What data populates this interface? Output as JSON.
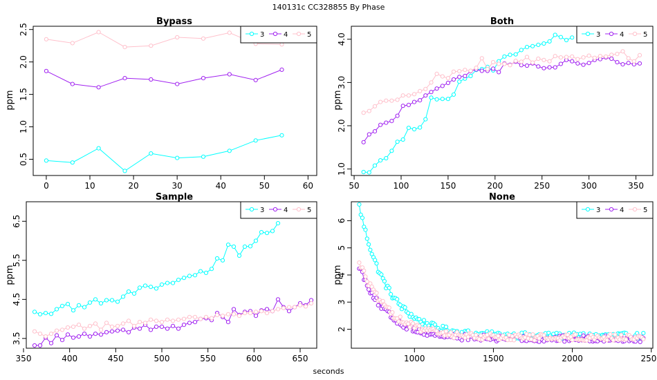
{
  "figure": {
    "top_title": "140131c    CC328855   By Phase",
    "xlabel": "seconds"
  },
  "chart_data": [
    {
      "type": "line",
      "title": "Bypass",
      "ylabel": "ppm",
      "xlim": [
        -3,
        62
      ],
      "ylim": [
        0.25,
        2.55
      ],
      "xticks": [
        0,
        10,
        20,
        30,
        40,
        50,
        60
      ],
      "yticks": [
        0.5,
        1.0,
        1.5,
        2.0,
        2.5
      ],
      "ytick_labels": [
        "0.5",
        "1.0",
        "1.5",
        "2.0",
        "2.5"
      ],
      "legend": "top-right",
      "series": [
        {
          "name": "3",
          "color": "#00FFFF",
          "x": [
            0,
            6,
            12,
            18,
            24,
            30,
            36,
            42,
            48,
            54
          ],
          "y": [
            0.48,
            0.45,
            0.67,
            0.32,
            0.59,
            0.52,
            0.54,
            0.63,
            0.79,
            0.87
          ]
        },
        {
          "name": "4",
          "color": "#A020F0",
          "x": [
            0,
            6,
            12,
            18,
            24,
            30,
            36,
            42,
            48,
            54
          ],
          "y": [
            1.86,
            1.66,
            1.61,
            1.75,
            1.73,
            1.66,
            1.75,
            1.81,
            1.72,
            1.88
          ]
        },
        {
          "name": "5",
          "color": "#FFC0CB",
          "x": [
            0,
            6,
            12,
            18,
            24,
            30,
            36,
            42,
            48,
            54
          ],
          "y": [
            2.35,
            2.29,
            2.46,
            2.23,
            2.25,
            2.38,
            2.36,
            2.45,
            2.28,
            2.27
          ]
        }
      ]
    },
    {
      "type": "line",
      "title": "Both",
      "ylabel": "ppm",
      "xlim": [
        47,
        368
      ],
      "ylim": [
        0.85,
        4.3
      ],
      "xticks": [
        50,
        100,
        150,
        200,
        250,
        300,
        350
      ],
      "yticks": [
        1.0,
        2.0,
        3.0,
        4.0
      ],
      "ytick_labels": [
        "1.0",
        "2.0",
        "3.0",
        "4.0"
      ],
      "legend": "top-right",
      "series": [
        {
          "name": "3",
          "color": "#00FFFF",
          "x": [
            60,
            66,
            72,
            78,
            84,
            90,
            96,
            102,
            108,
            114,
            120,
            126,
            132,
            138,
            144,
            150,
            156,
            162,
            168,
            174,
            180,
            186,
            192,
            198,
            204,
            210,
            216,
            222,
            228,
            234,
            240,
            246,
            252,
            258,
            264,
            270,
            276,
            282
          ],
          "y": [
            0.93,
            0.92,
            1.08,
            1.2,
            1.25,
            1.42,
            1.63,
            1.68,
            1.95,
            1.92,
            1.96,
            2.15,
            2.65,
            2.61,
            2.62,
            2.62,
            2.72,
            3.02,
            3.09,
            3.15,
            3.29,
            3.31,
            3.36,
            3.28,
            3.49,
            3.6,
            3.64,
            3.65,
            3.75,
            3.82,
            3.84,
            3.87,
            3.9,
            3.95,
            4.1,
            4.05,
            3.98,
            4.04
          ]
        },
        {
          "name": "4",
          "color": "#A020F0",
          "x": [
            60,
            66,
            72,
            78,
            84,
            90,
            96,
            102,
            108,
            114,
            120,
            126,
            132,
            138,
            144,
            150,
            156,
            162,
            168,
            174,
            180,
            186,
            192,
            198,
            204,
            210,
            216,
            222,
            228,
            234,
            240,
            246,
            252,
            258,
            264,
            270,
            276,
            282,
            288,
            294,
            300,
            306,
            312,
            318,
            324,
            330,
            336,
            342,
            348,
            354
          ],
          "y": [
            1.62,
            1.8,
            1.87,
            2.02,
            2.07,
            2.11,
            2.23,
            2.46,
            2.48,
            2.55,
            2.59,
            2.7,
            2.78,
            2.86,
            2.92,
            2.99,
            3.07,
            3.13,
            3.15,
            3.26,
            3.3,
            3.27,
            3.27,
            3.32,
            3.24,
            3.44,
            3.41,
            3.48,
            3.4,
            3.39,
            3.44,
            3.37,
            3.33,
            3.35,
            3.35,
            3.43,
            3.52,
            3.49,
            3.44,
            3.41,
            3.45,
            3.52,
            3.54,
            3.58,
            3.55,
            3.47,
            3.42,
            3.45,
            3.42,
            3.44
          ]
        },
        {
          "name": "5",
          "color": "#FFC0CB",
          "x": [
            60,
            66,
            72,
            78,
            84,
            90,
            96,
            102,
            108,
            114,
            120,
            126,
            132,
            138,
            144,
            150,
            156,
            162,
            168,
            174,
            180,
            186,
            192,
            198,
            204,
            210,
            216,
            222,
            228,
            234,
            240,
            246,
            252,
            258,
            264,
            270,
            276,
            282,
            288,
            294,
            300,
            306,
            312,
            318,
            324,
            330,
            336,
            342,
            348,
            354
          ],
          "y": [
            2.3,
            2.34,
            2.45,
            2.55,
            2.58,
            2.58,
            2.6,
            2.7,
            2.7,
            2.73,
            2.8,
            2.85,
            3.0,
            3.2,
            3.14,
            3.1,
            3.25,
            3.26,
            3.29,
            3.27,
            3.34,
            3.56,
            3.31,
            3.47,
            3.43,
            3.43,
            3.4,
            3.5,
            3.48,
            3.59,
            3.46,
            3.55,
            3.52,
            3.49,
            3.61,
            3.58,
            3.59,
            3.6,
            3.54,
            3.58,
            3.62,
            3.57,
            3.61,
            3.6,
            3.64,
            3.66,
            3.72,
            3.56,
            3.49,
            3.63
          ]
        }
      ]
    },
    {
      "type": "line",
      "title": "Sample",
      "ylabel": "ppm",
      "xlim": [
        353,
        668
      ],
      "ylim": [
        3.25,
        7.0
      ],
      "xticks": [
        350,
        400,
        450,
        500,
        550,
        600,
        650
      ],
      "yticks": [
        3.5,
        4.5,
        5.5,
        6.5
      ],
      "ytick_labels": [
        "3.5",
        "4.5",
        "5.5",
        "6.5"
      ],
      "legend": "top-right",
      "series": [
        {
          "name": "3",
          "color": "#00FFFF",
          "x": [
            362,
            368,
            374,
            380,
            386,
            392,
            398,
            404,
            410,
            416,
            422,
            428,
            434,
            440,
            446,
            452,
            458,
            464,
            470,
            476,
            482,
            488,
            494,
            500,
            506,
            512,
            518,
            524,
            530,
            536,
            542,
            548,
            554,
            560,
            566,
            572,
            578,
            584,
            590,
            596,
            602,
            608,
            614,
            620,
            626
          ],
          "y": [
            4.18,
            4.12,
            4.15,
            4.13,
            4.25,
            4.33,
            4.38,
            4.22,
            4.35,
            4.3,
            4.42,
            4.5,
            4.4,
            4.48,
            4.48,
            4.44,
            4.57,
            4.7,
            4.65,
            4.8,
            4.85,
            4.82,
            4.78,
            4.88,
            4.92,
            4.92,
            5.0,
            5.05,
            5.1,
            5.12,
            5.22,
            5.18,
            5.28,
            5.55,
            5.5,
            5.9,
            5.85,
            5.62,
            5.85,
            5.86,
            6.0,
            6.22,
            6.2,
            6.25,
            6.45
          ]
        },
        {
          "name": "4",
          "color": "#A020F0",
          "x": [
            362,
            368,
            374,
            380,
            386,
            392,
            398,
            404,
            410,
            416,
            422,
            428,
            434,
            440,
            446,
            452,
            458,
            464,
            470,
            476,
            482,
            488,
            494,
            500,
            506,
            512,
            518,
            524,
            530,
            536,
            542,
            548,
            554,
            560,
            566,
            572,
            578,
            584,
            590,
            596,
            602,
            608,
            614,
            620,
            626,
            632,
            638,
            644,
            650,
            656,
            662
          ],
          "y": [
            3.32,
            3.32,
            3.52,
            3.38,
            3.58,
            3.46,
            3.6,
            3.52,
            3.55,
            3.62,
            3.55,
            3.62,
            3.6,
            3.66,
            3.68,
            3.7,
            3.72,
            3.66,
            3.78,
            3.75,
            3.85,
            3.72,
            3.8,
            3.8,
            3.75,
            3.82,
            3.75,
            3.85,
            3.9,
            3.92,
            4.0,
            4.02,
            3.97,
            4.15,
            4.05,
            3.92,
            4.25,
            4.1,
            4.18,
            4.2,
            4.08,
            4.22,
            4.25,
            4.2,
            4.5,
            4.3,
            4.2,
            4.3,
            4.4,
            4.35,
            4.48
          ]
        },
        {
          "name": "5",
          "color": "#FFC0CB",
          "x": [
            362,
            368,
            374,
            380,
            386,
            392,
            398,
            404,
            410,
            416,
            422,
            428,
            434,
            440,
            446,
            452,
            458,
            464,
            470,
            476,
            482,
            488,
            494,
            500,
            506,
            512,
            518,
            524,
            530,
            536,
            542,
            548,
            554,
            560,
            566,
            572,
            578,
            584,
            590,
            596,
            602,
            608,
            614,
            620,
            626,
            632,
            638,
            644,
            650,
            656,
            662
          ],
          "y": [
            3.68,
            3.62,
            3.55,
            3.62,
            3.7,
            3.72,
            3.78,
            3.8,
            3.85,
            3.75,
            3.82,
            3.88,
            3.72,
            3.9,
            3.8,
            3.82,
            3.88,
            3.95,
            3.82,
            3.92,
            3.9,
            3.98,
            3.95,
            3.92,
            3.98,
            3.95,
            3.98,
            4.0,
            4.05,
            4.05,
            4.0,
            4.05,
            4.02,
            4.1,
            4.08,
            4.12,
            4.12,
            4.08,
            4.15,
            4.15,
            4.18,
            4.2,
            4.15,
            4.2,
            4.25,
            4.28,
            4.3,
            4.3,
            4.35,
            4.32,
            4.4
          ]
        }
      ]
    },
    {
      "type": "line",
      "title": "None",
      "ylabel": "ppm",
      "xlim": [
        600,
        2510
      ],
      "ylim": [
        1.3,
        6.7
      ],
      "xticks": [
        1000,
        1500,
        2000,
        2500
      ],
      "yticks": [
        2,
        3,
        4,
        5,
        6
      ],
      "ytick_labels": [
        "2",
        "3",
        "4",
        "5",
        "6"
      ],
      "legend": "top-right",
      "decay": [
        {
          "name": "3",
          "color": "#00FFFF",
          "start": 650,
          "end": 2450,
          "step": 10,
          "a": 1.75,
          "b": 4.8,
          "tau": 180,
          "noise": 0.12
        },
        {
          "name": "4",
          "color": "#A020F0",
          "start": 650,
          "end": 2450,
          "step": 10,
          "a": 1.65,
          "b": 2.7,
          "tau": 170,
          "noise": 0.12
        },
        {
          "name": "5",
          "color": "#FFC0CB",
          "start": 650,
          "end": 2450,
          "step": 10,
          "a": 1.7,
          "b": 2.8,
          "tau": 180,
          "noise": 0.12
        }
      ]
    }
  ]
}
